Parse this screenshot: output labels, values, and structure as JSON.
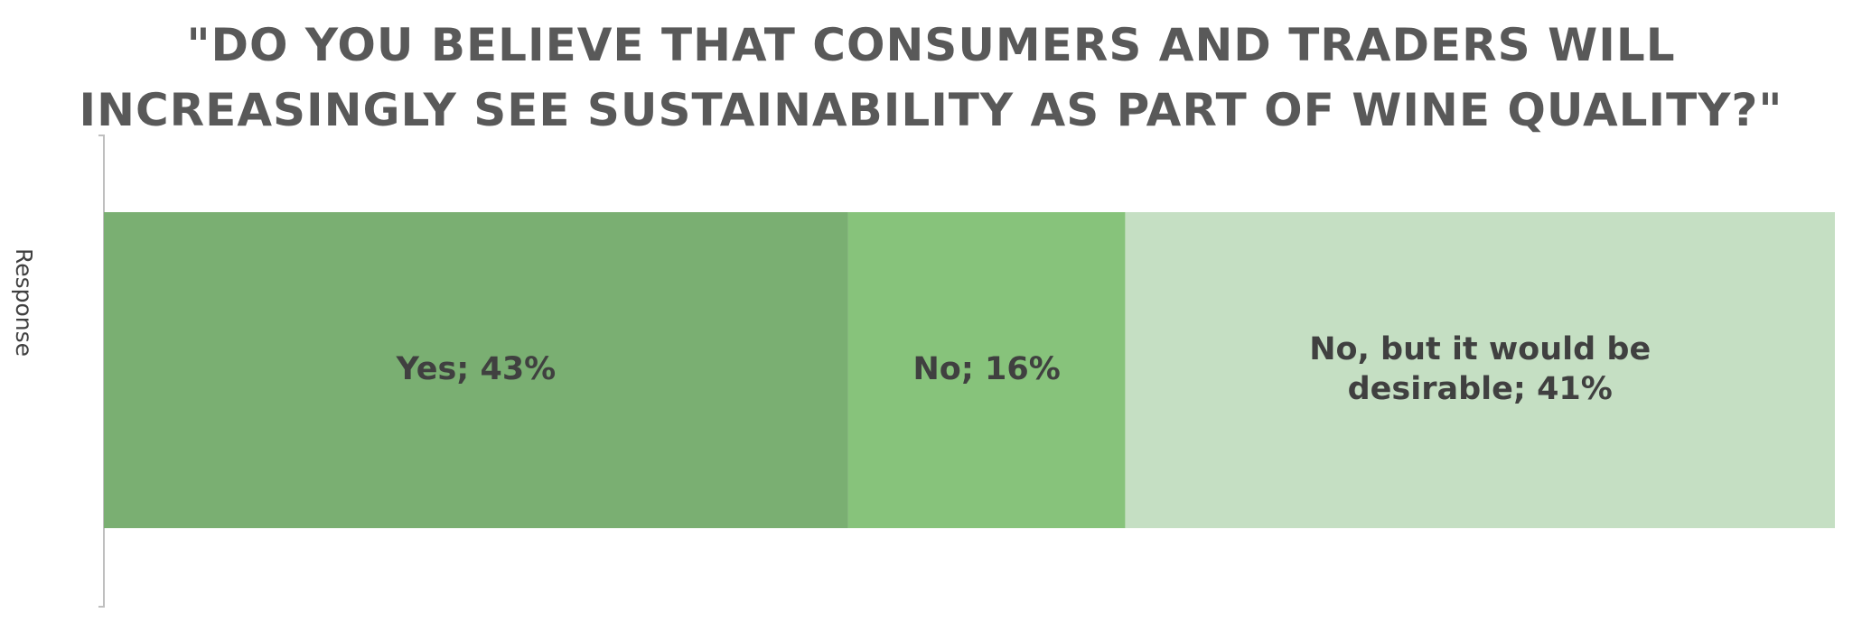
{
  "chart_data": {
    "type": "bar",
    "orientation": "horizontal",
    "stacked": true,
    "normalized": "100%",
    "title": [
      "\"DO YOU BELIEVE THAT CONSUMERS AND TRADERS WILL",
      "INCREASINGLY SEE SUSTAINABILITY AS PART OF WINE QUALITY?\""
    ],
    "ylabel": "Response",
    "xlabel": "",
    "categories": [
      "Response"
    ],
    "series": [
      {
        "name": "Yes",
        "values": [
          43
        ],
        "data_label": [
          "Yes; 43%"
        ],
        "color": "#7aaf72"
      },
      {
        "name": "No",
        "values": [
          16
        ],
        "data_label": [
          "No; 16%"
        ],
        "color": "#87c37b"
      },
      {
        "name": "No, but it would be desirable",
        "values": [
          41
        ],
        "data_label": [
          "No, but it would be",
          "desirable; 41%"
        ],
        "color": "#c5dfc3"
      }
    ],
    "xlim": [
      0,
      100
    ],
    "grid": false,
    "legend": "none"
  }
}
